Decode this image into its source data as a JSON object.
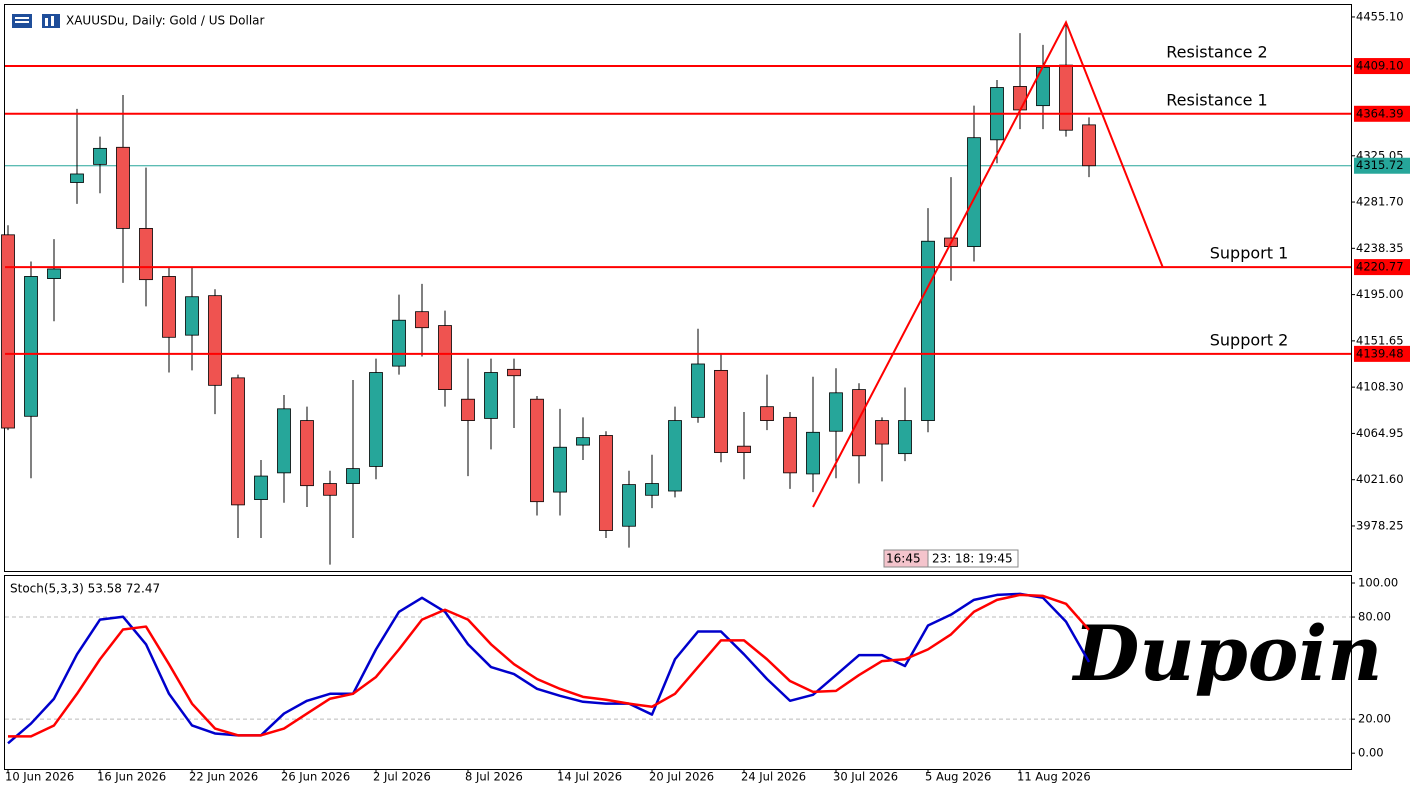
{
  "header": {
    "symbol": "XAUUSDu, Daily:  Gold / US Dollar"
  },
  "watermark": "Dupoin",
  "time_labels": [
    "16:45",
    "23:",
    "18:",
    "19:45"
  ],
  "chart_data": [
    {
      "type": "candlestick",
      "categories": [
        "10 Jun 2026",
        null,
        null,
        null,
        "16 Jun 2026",
        null,
        null,
        null,
        "22 Jun 2026",
        null,
        null,
        null,
        "26 Jun 2026",
        null,
        null,
        null,
        "2 Jul 2026",
        null,
        null,
        null,
        "8 Jul 2026",
        null,
        null,
        null,
        "14 Jul 2026",
        null,
        null,
        null,
        "20 Jul 2026",
        null,
        null,
        null,
        "24 Jul 2026",
        null,
        null,
        null,
        "30 Jul 2026",
        null,
        null,
        null,
        "5 Aug 2026",
        null,
        null,
        null,
        "11 Aug 2026",
        null,
        null,
        null
      ],
      "open": [
        4251,
        4081,
        4210,
        4300,
        4317,
        4333,
        4257,
        4212,
        4157,
        4194,
        4117,
        4003,
        4028,
        4077,
        4018,
        4018,
        4034,
        4128,
        4179,
        4166,
        4097,
        4079,
        4125,
        4097,
        4010,
        4054,
        4063,
        3978,
        4007,
        4011,
        4080,
        4124,
        4053,
        4090,
        4080,
        4027,
        4067,
        4106,
        4077,
        4046,
        4077,
        4248,
        4240,
        4340,
        4390,
        4372,
        4410,
        4354
      ],
      "high": [
        4260,
        4226,
        4247,
        4369,
        4343,
        4382,
        4314,
        4220,
        4220,
        4200,
        4120,
        4040,
        4101,
        4090,
        4030,
        4115,
        4135,
        4195,
        4205,
        4180,
        4135,
        4135,
        4135,
        4100,
        4088,
        4080,
        4067,
        4030,
        4045,
        4090,
        4163,
        4139,
        4085,
        4120,
        4085,
        4118,
        4126,
        4112,
        4080,
        4108,
        4276,
        4305,
        4372,
        4396,
        4440,
        4429,
        4450,
        4361
      ],
      "low": [
        4068,
        4023,
        4170,
        4280,
        4290,
        4206,
        4184,
        4122,
        4124,
        4083,
        3967,
        3967,
        4000,
        3996,
        3942,
        3967,
        4022,
        4120,
        4137,
        4090,
        4025,
        4050,
        4070,
        3988,
        3988,
        4040,
        3967,
        3958,
        3995,
        4005,
        4075,
        4038,
        4022,
        4068,
        4013,
        4010,
        4023,
        4018,
        4020,
        4039,
        4066,
        4208,
        4226,
        4318,
        4350,
        4350,
        4343,
        4305
      ],
      "close": [
        4070,
        4212,
        4219,
        4308,
        4332,
        4257,
        4209,
        4155,
        4193,
        4110,
        3998,
        4025,
        4088,
        4016,
        4007,
        4032,
        4122,
        4171,
        4164,
        4106,
        4077,
        4122,
        4119,
        4001,
        4052,
        4061,
        3974,
        4017,
        4018,
        4077,
        4130,
        4047,
        4047,
        4077,
        4028,
        4066,
        4103,
        4044,
        4055,
        4077,
        4245,
        4240,
        4342,
        4389,
        4368,
        4408,
        4349,
        4315.72
      ],
      "up_color": "#26a69a",
      "down_color": "#ef5350",
      "ylim": [
        3937,
        4466.3
      ],
      "yticks": [
        {
          "value": 4455.1,
          "label": "4455.10"
        },
        4325.05,
        {
          "value": 4281.7,
          "label": "4281.70"
        },
        4238.35,
        {
          "value": 4195,
          "label": "4195.00"
        },
        4151.65,
        {
          "value": 4108.3,
          "label": "4108.30"
        },
        4064.95,
        {
          "value": 4021.6,
          "label": "4021.60"
        },
        3978.25
      ],
      "levels": {
        "names": [
          "Resistance 2",
          "Resistance 1",
          "Support 1",
          "Support 2"
        ],
        "values": [
          4409.1,
          4364.39,
          4220.77,
          4139.48
        ],
        "value_labels": [
          "4409.10",
          "4364.39",
          "4220.77",
          "4139.48"
        ],
        "color": "#ff0000"
      },
      "price_line": {
        "value": 4315.72,
        "color": "#26a69a"
      },
      "trendline": {
        "x": [
          35,
          46,
          50.2
        ],
        "values": [
          3996,
          4450,
          4221
        ],
        "color": "#ff0000"
      }
    },
    {
      "type": "line",
      "title": "Stoch(5,3,3) 53.58 72.47",
      "series": [
        {
          "color": "#0000cc",
          "values": [
            5.8,
            17.4,
            32.0,
            58.1,
            78.5,
            80.2,
            64.0,
            34.9,
            16.3,
            11.6,
            10.5,
            10.5,
            23.3,
            30.8,
            34.9,
            34.9,
            61.0,
            83.1,
            91.3,
            83.1,
            64.0,
            50.6,
            46.5,
            37.8,
            33.7,
            30.2,
            29.1,
            29.1,
            22.7,
            55.2,
            71.5,
            71.5,
            58.1,
            43.6,
            30.8,
            34.3,
            45.9,
            57.6,
            57.6,
            51.2,
            75.0,
            81.4,
            90.1,
            93.0,
            93.6,
            91.3,
            77.3,
            53.58
          ]
        },
        {
          "color": "#ff0000",
          "values": [
            9.9,
            9.9,
            16.3,
            34.9,
            55.2,
            72.7,
            74.4,
            52.3,
            29.1,
            14.5,
            10.5,
            10.5,
            14.5,
            23.3,
            32.0,
            34.9,
            44.8,
            61.0,
            78.5,
            84.3,
            78.5,
            64.0,
            52.3,
            43.6,
            37.8,
            33.1,
            31.4,
            29.1,
            27.3,
            34.9,
            50.6,
            66.3,
            66.3,
            55.2,
            42.4,
            36.0,
            36.6,
            45.9,
            54.1,
            55.2,
            61.0,
            69.8,
            83.1,
            90.1,
            93.0,
            92.4,
            87.8,
            72.47
          ]
        }
      ],
      "ylim": [
        -8.7,
        104.7
      ],
      "yticks": [
        {
          "value": 100,
          "label": "100.00"
        },
        {
          "value": 80,
          "label": "80.00"
        },
        {
          "value": 20,
          "label": "20.00"
        },
        {
          "value": 0,
          "label": "0.00"
        }
      ],
      "level_lines": [
        80,
        20
      ]
    }
  ]
}
